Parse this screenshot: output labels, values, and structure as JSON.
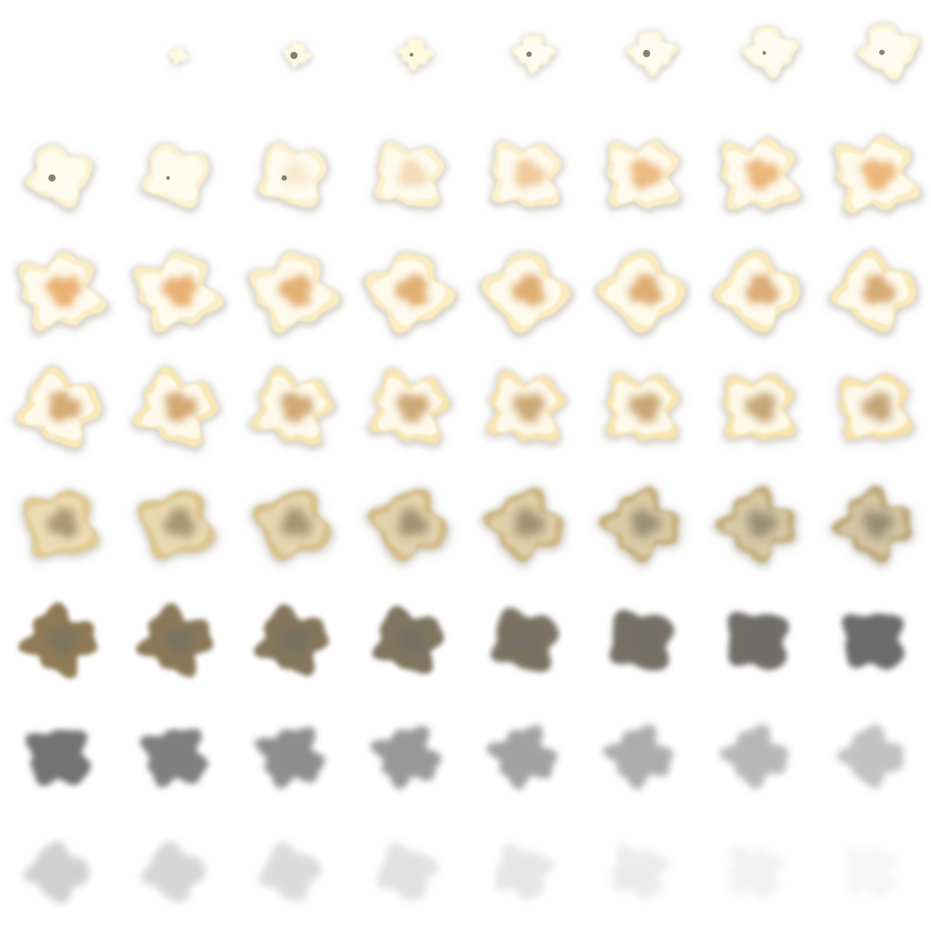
{
  "sprite_sheet": {
    "subject": "explosion-animation",
    "columns": 8,
    "rows": 8,
    "frame_count": 64,
    "background_color": "#ffffff",
    "colors": {
      "flash_white": "#fffbe6",
      "flame_yellow": "#f7dfa0",
      "core_orange": "#e39a4a",
      "charred_brown": "#8f7a55",
      "smoke_dark": "#6c6c6c",
      "smoke_light": "#bdbdbd",
      "debris_dark": "#4a5238"
    },
    "phases": [
      "ignition",
      "fireball",
      "burning",
      "smoke",
      "dissipation"
    ]
  }
}
